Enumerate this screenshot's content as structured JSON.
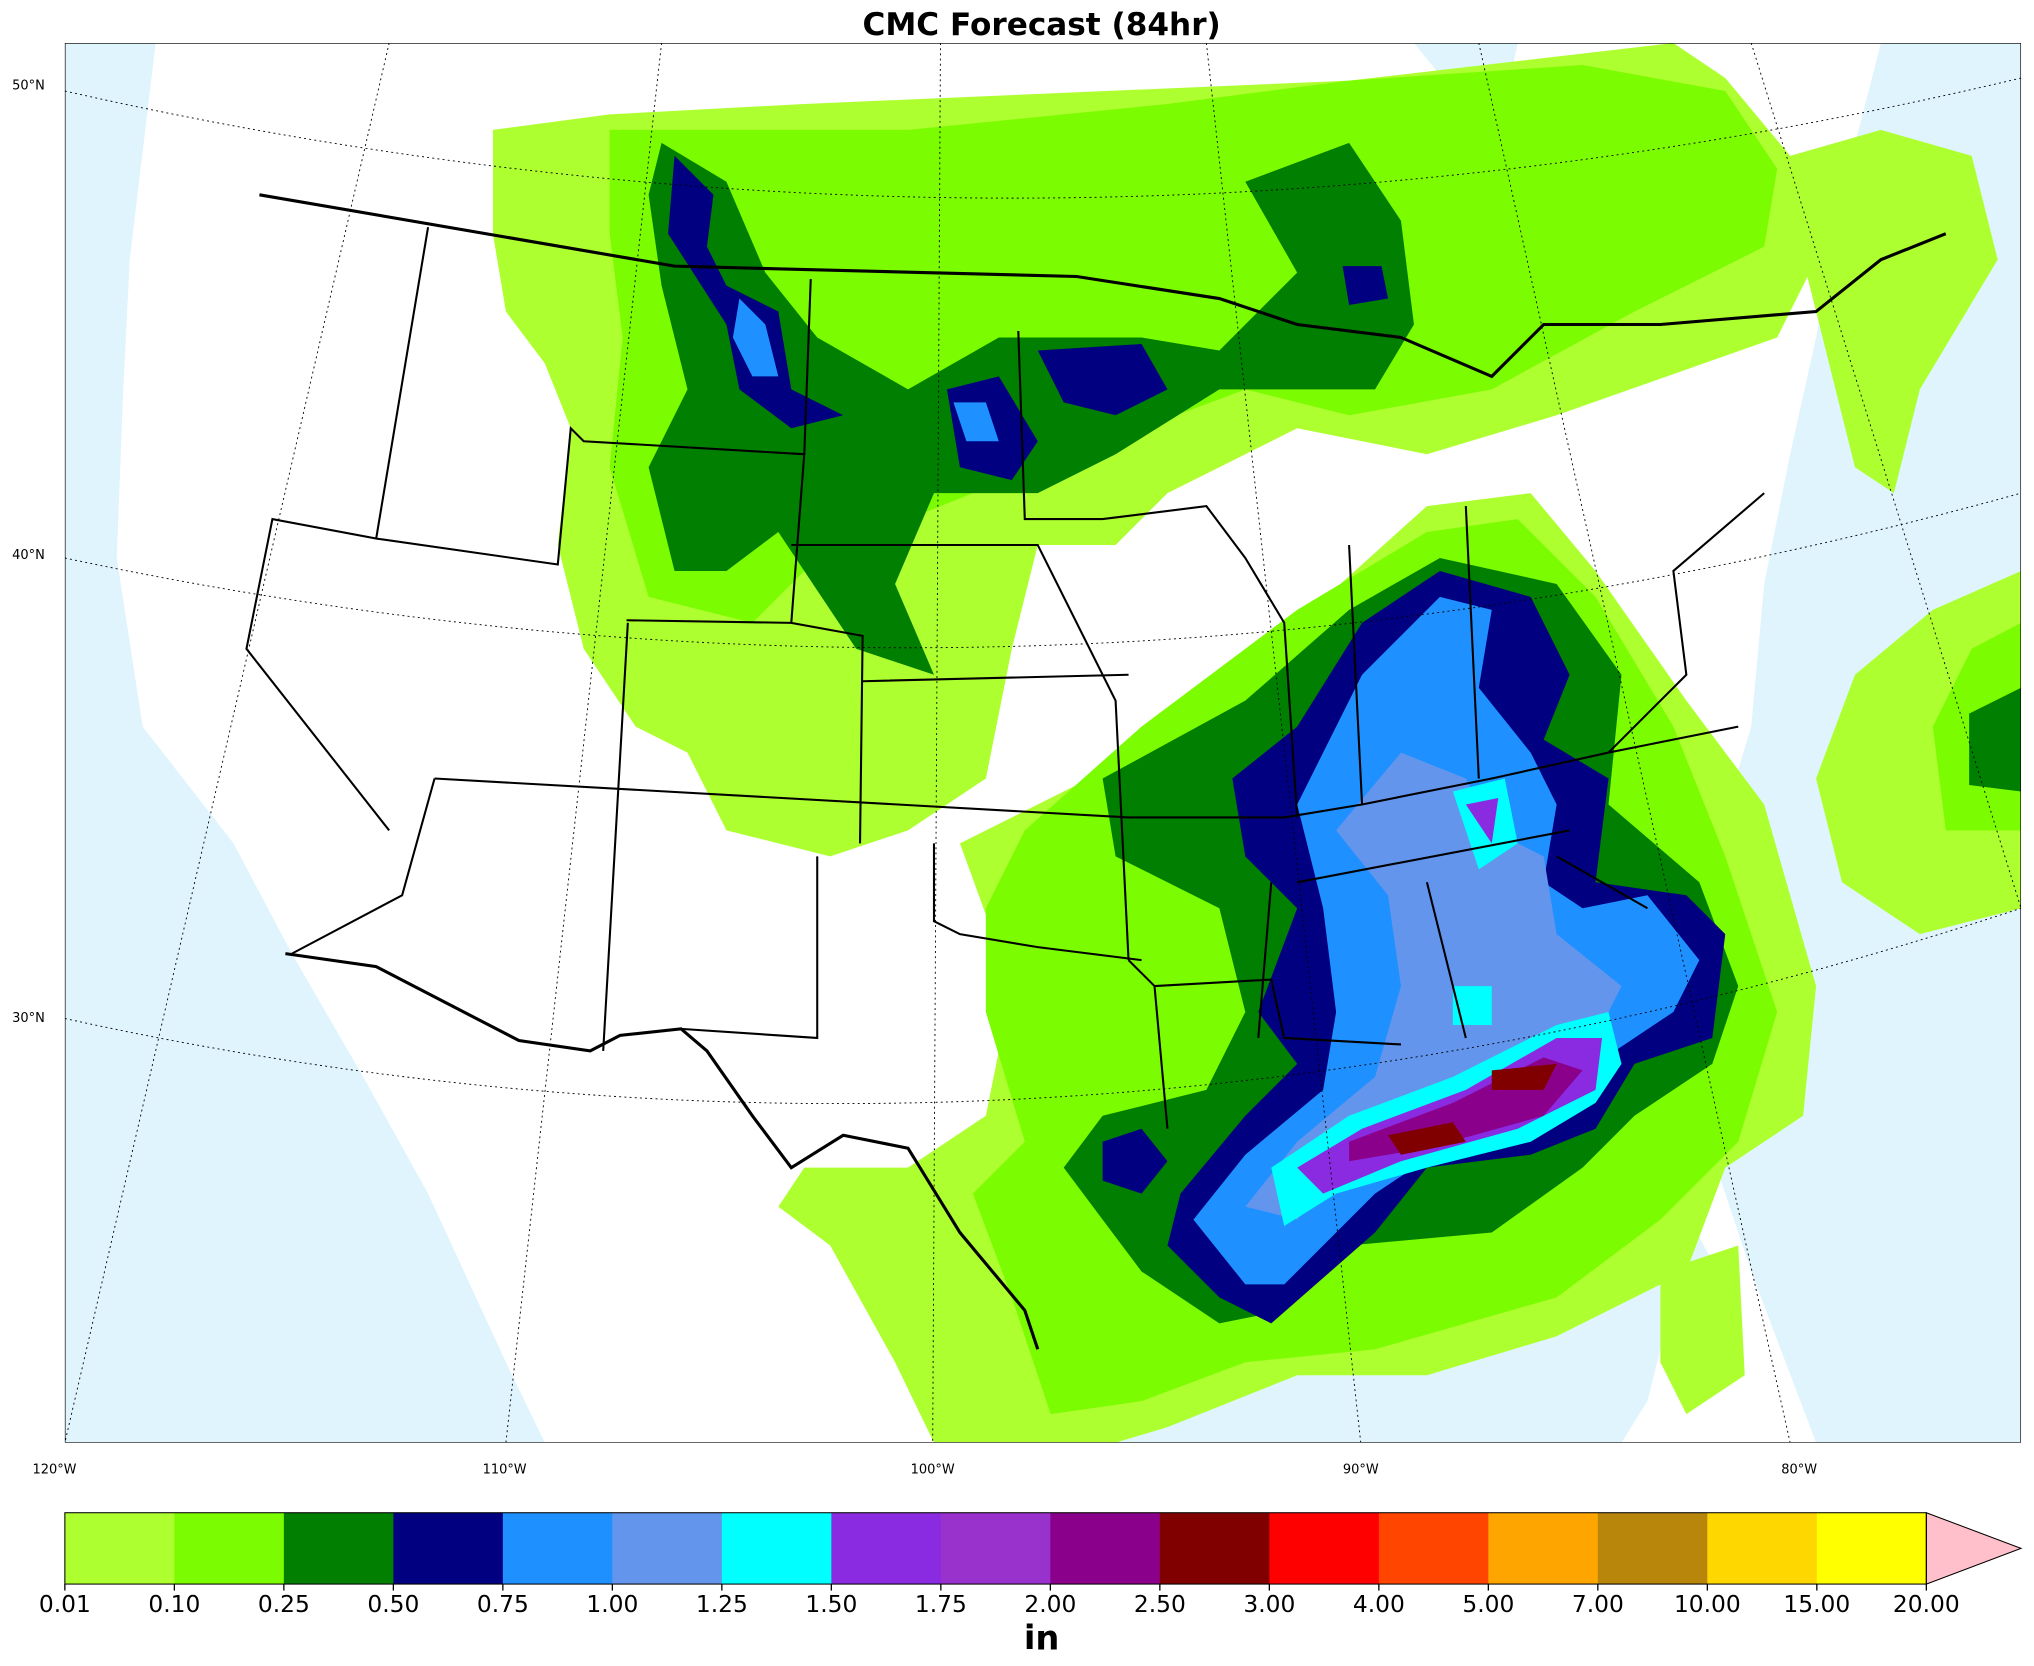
{
  "title": "CMC Forecast (84hr)",
  "map": {
    "lat_labels": [
      "50°N",
      "40°N",
      "30°N"
    ],
    "lon_labels": [
      "120°W",
      "110°W",
      "100°W",
      "90°W",
      "80°W"
    ]
  },
  "colorbar": {
    "levels": [
      {
        "value": 0.01,
        "label": "0.01"
      },
      {
        "value": 0.1,
        "label": "0.10"
      },
      {
        "value": 0.25,
        "label": "0.25"
      },
      {
        "value": 0.5,
        "label": "0.50"
      },
      {
        "value": 0.75,
        "label": "0.75"
      },
      {
        "value": 1,
        "label": "1.00"
      },
      {
        "value": 1.25,
        "label": "1.25"
      },
      {
        "value": 1.5,
        "label": "1.50"
      },
      {
        "value": 1.75,
        "label": "1.75"
      },
      {
        "value": 2,
        "label": "2.00"
      },
      {
        "value": 2.5,
        "label": "2.50"
      },
      {
        "value": 3,
        "label": "3.00"
      },
      {
        "value": 4,
        "label": "4.00"
      },
      {
        "value": 5,
        "label": "5.00"
      },
      {
        "value": 7,
        "label": "7.00"
      },
      {
        "value": 10,
        "label": "10.00"
      },
      {
        "value": 15,
        "label": "15.00"
      },
      {
        "value": 20,
        "label": "20.00"
      }
    ],
    "colors": [
      "#adff2f",
      "#7cfc00",
      "#007f00",
      "#000080",
      "#1e90ff",
      "#6495ed",
      "#00ffff",
      "#8a2be2",
      "#9932cc",
      "#8b008b",
      "#800000",
      "#ff0000",
      "#ff4500",
      "#ffa500",
      "#b8860b",
      "#ffd700",
      "#ffff00"
    ],
    "extend_color": "#ffc0cb",
    "unit": "in"
  }
}
